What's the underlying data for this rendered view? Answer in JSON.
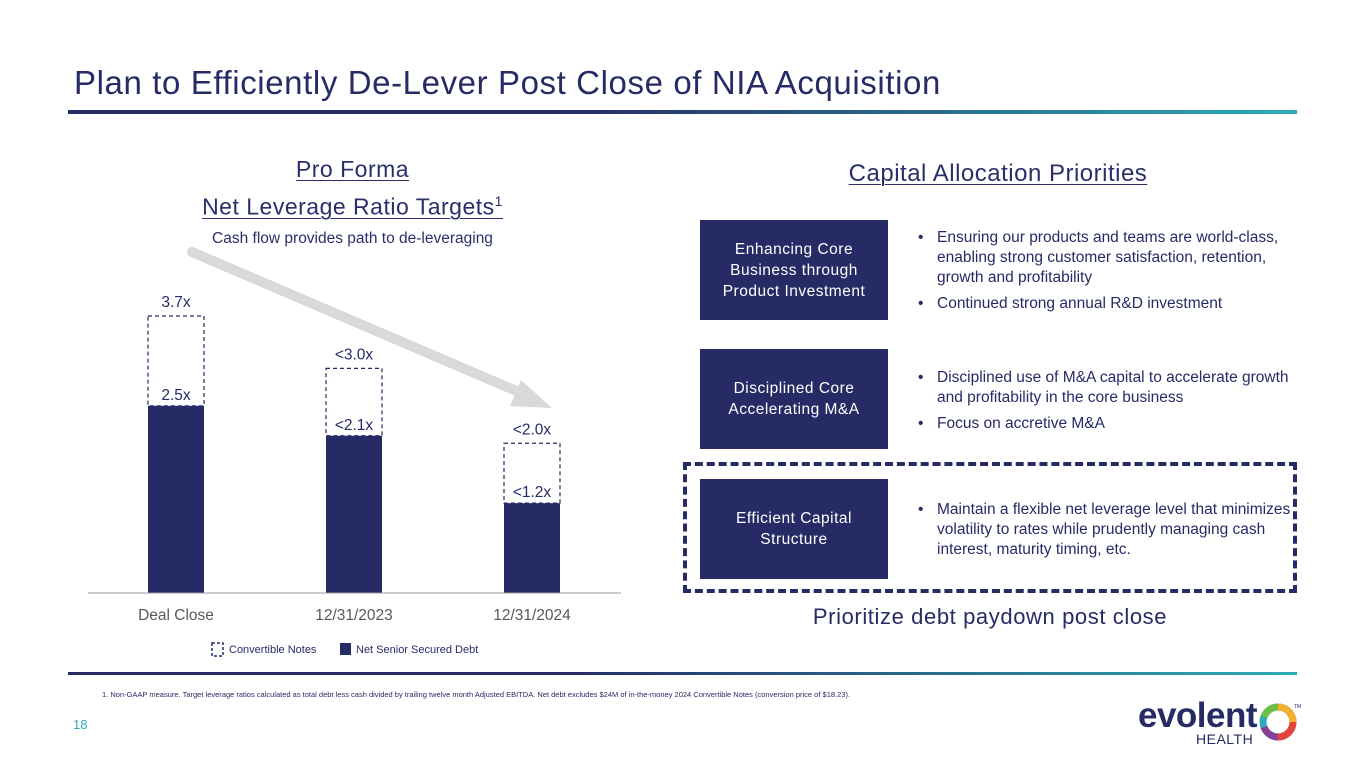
{
  "slide": {
    "title": "Plan to Efficiently De-Lever Post Close of NIA Acquisition",
    "page_number": "18",
    "footnote": "1.   Non-GAAP measure. Target leverage ratios calculated as total debt less cash divided by trailing twelve month Adjusted EBITDA. Net debt excludes $24M of in-the-money 2024 Convertible Notes (conversion price of $18.23).",
    "accent_color": "#262b66",
    "teal_color": "#2eaab9"
  },
  "left_panel": {
    "heading_line1": "Pro Forma",
    "heading_line2": "Net Leverage Ratio Targets",
    "heading_superscript": "1",
    "subtitle": "Cash flow provides path to de-leveraging"
  },
  "chart_data": {
    "type": "bar",
    "stacked": true,
    "categories": [
      "Deal Close",
      "12/31/2023",
      "12/31/2024"
    ],
    "series": [
      {
        "name": "Net Senior Secured Debt",
        "values": [
          2.5,
          2.1,
          1.2
        ],
        "labels": [
          "2.5x",
          "<2.1x",
          "<1.2x"
        ],
        "style": "solid",
        "color": "#262b66"
      },
      {
        "name": "Convertible Notes",
        "values": [
          1.2,
          0.9,
          0.8
        ],
        "total_labels": [
          "3.7x",
          "<3.0x",
          "<2.0x"
        ],
        "style": "dashed",
        "color": "#262b66"
      }
    ],
    "ylim": [
      0,
      3.7
    ],
    "legend": [
      {
        "label": "Convertible Notes",
        "style": "dashed"
      },
      {
        "label": "Net Senior Secured Debt",
        "style": "solid"
      }
    ],
    "legend_position": "bottom",
    "trend_arrow": "downward from Deal Close to 12/31/2024"
  },
  "right_panel": {
    "heading": "Capital Allocation Priorities",
    "priorities": [
      {
        "label": "Enhancing Core Business through Product Investment",
        "bullets": [
          "Ensuring our products and teams are world-class, enabling strong customer satisfaction, retention, growth and profitability",
          "Continued strong annual R&D investment"
        ]
      },
      {
        "label": "Disciplined Core Accelerating M&A",
        "bullets": [
          "Disciplined use of M&A capital to accelerate growth and profitability in the core business",
          "Focus on accretive M&A"
        ]
      },
      {
        "label": "Efficient Capital Structure",
        "bullets": [
          "Maintain a flexible net leverage level that minimizes volatility to rates while prudently managing cash interest, maturity timing, etc."
        ]
      }
    ],
    "bottom_callout": "Prioritize debt paydown post close"
  },
  "logo": {
    "word": "evolent",
    "sub": "HEALTH",
    "tm": "TM"
  }
}
